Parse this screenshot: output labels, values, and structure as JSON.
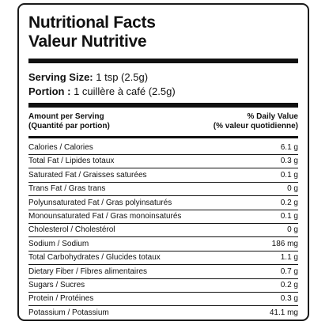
{
  "label": {
    "title_en": "Nutritional Facts",
    "title_fr": "Valeur Nutritive",
    "serving_size_label_en": "Serving Size:",
    "serving_size_value_en": "1 tsp (2.5g)",
    "serving_size_label_fr": "Portion :",
    "serving_size_value_fr": "1 cuillère à café (2.5g)",
    "amount_header_en": "Amount per Serving",
    "amount_header_fr": "(Quantité par portion)",
    "dv_header_en": "% Daily Value",
    "dv_header_fr": "(% valeur quotidienne)",
    "rows": [
      {
        "name": "Calories / Calories",
        "value": "6.1 g"
      },
      {
        "name": "Total Fat / Lipides totaux",
        "value": "0.3 g"
      },
      {
        "name": "Saturated Fat / Graisses saturées",
        "value": "0.1 g"
      },
      {
        "name": "Trans Fat / Gras trans",
        "value": "0 g"
      },
      {
        "name": "Polyunsaturated Fat / Gras polyinsaturés",
        "value": "0.2 g"
      },
      {
        "name": "Monounsaturated Fat / Gras monoinsaturés",
        "value": "0.1 g"
      },
      {
        "name": "Cholesterol / Cholestérol",
        "value": "0 g"
      },
      {
        "name": "Sodium / Sodium",
        "value": "186 mg"
      },
      {
        "name": "Total Carbohydrates / Glucides totaux",
        "value": "1.1 g"
      },
      {
        "name": "Dietary Fiber / Fibres alimentaires",
        "value": "0.7 g"
      },
      {
        "name": "Sugars / Sucres",
        "value": "0.2 g"
      },
      {
        "name": "Protein / Protéines",
        "value": "0.3 g"
      },
      {
        "name": "Potassium / Potassium",
        "value": "41.1 mg"
      }
    ]
  }
}
